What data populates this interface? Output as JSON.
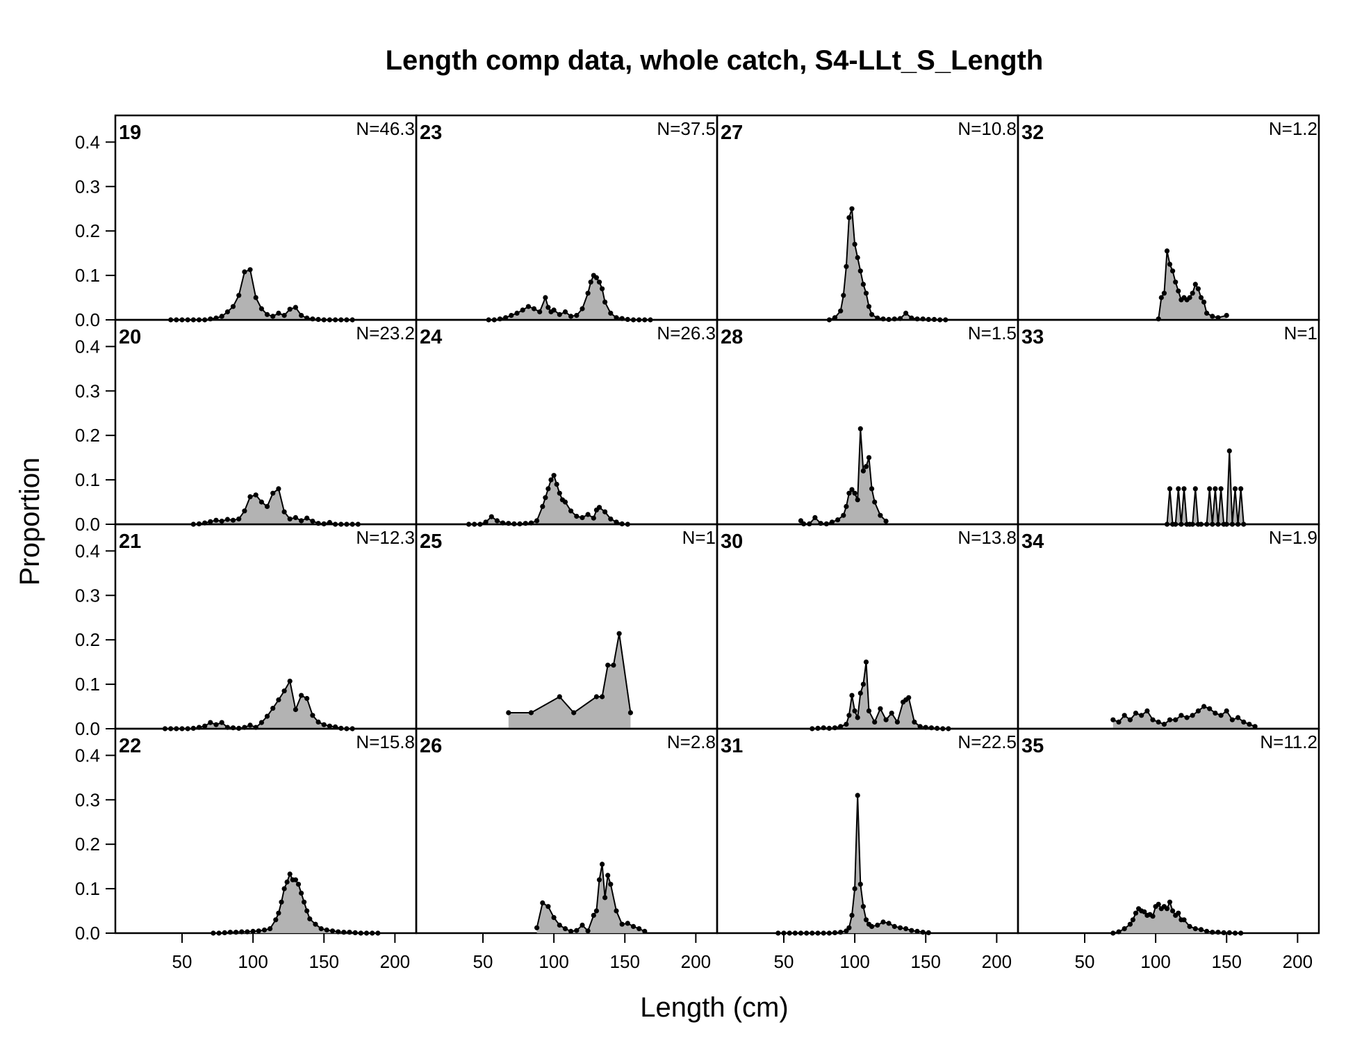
{
  "chart_data": {
    "type": "area",
    "title": "Length comp data, whole catch, S4-LLt_S_Length",
    "xlabel": "Length (cm)",
    "ylabel": "Proportion",
    "xlim": [
      3,
      215
    ],
    "ylim": [
      0,
      0.46
    ],
    "x_ticks": [
      "50",
      "100",
      "150",
      "200"
    ],
    "y_ticks": [
      "0.0",
      "0.1",
      "0.2",
      "0.3",
      "0.4"
    ],
    "layout": "4 columns x 4 rows, column-major order",
    "panels": [
      {
        "year": "19",
        "n": "N=46.3",
        "x": [
          42,
          46,
          50,
          54,
          58,
          62,
          66,
          70,
          74,
          78,
          82,
          86,
          90,
          94,
          98,
          102,
          106,
          110,
          114,
          118,
          122,
          126,
          130,
          134,
          138,
          142,
          146,
          150,
          154,
          158,
          162,
          166,
          170
        ],
        "y": [
          0,
          0,
          0,
          0,
          0,
          0,
          0,
          0.002,
          0.004,
          0.008,
          0.018,
          0.03,
          0.055,
          0.108,
          0.113,
          0.05,
          0.025,
          0.012,
          0.008,
          0.015,
          0.01,
          0.024,
          0.028,
          0.01,
          0.004,
          0.002,
          0.001,
          0,
          0,
          0,
          0,
          0,
          0
        ]
      },
      {
        "year": "20",
        "n": "N=23.2",
        "x": [
          58,
          62,
          66,
          70,
          74,
          78,
          82,
          86,
          90,
          94,
          98,
          102,
          106,
          110,
          114,
          118,
          122,
          126,
          130,
          134,
          138,
          142,
          146,
          150,
          154,
          158,
          162,
          166,
          170,
          174
        ],
        "y": [
          0,
          0.001,
          0.003,
          0.006,
          0.009,
          0.007,
          0.011,
          0.009,
          0.012,
          0.03,
          0.062,
          0.066,
          0.05,
          0.04,
          0.07,
          0.08,
          0.028,
          0.012,
          0.015,
          0.008,
          0.014,
          0.007,
          0.002,
          0.001,
          0.004,
          0,
          0,
          0,
          0,
          0
        ]
      },
      {
        "year": "21",
        "n": "N=12.3",
        "x": [
          38,
          42,
          46,
          50,
          54,
          58,
          62,
          66,
          70,
          74,
          78,
          82,
          86,
          90,
          94,
          98,
          102,
          106,
          110,
          114,
          118,
          122,
          126,
          130,
          134,
          138,
          142,
          146,
          150,
          154,
          158,
          162,
          166,
          170
        ],
        "y": [
          0,
          0,
          0,
          0,
          0,
          0.001,
          0.003,
          0.006,
          0.014,
          0.009,
          0.014,
          0.003,
          0.002,
          0.001,
          0.003,
          0.008,
          0.003,
          0.014,
          0.028,
          0.046,
          0.065,
          0.085,
          0.107,
          0.043,
          0.075,
          0.068,
          0.03,
          0.015,
          0.009,
          0.006,
          0.004,
          0.001,
          0,
          0
        ]
      },
      {
        "year": "22",
        "n": "N=15.8",
        "x": [
          72,
          76,
          80,
          84,
          88,
          92,
          96,
          100,
          104,
          108,
          112,
          116,
          118,
          120,
          122,
          124,
          126,
          128,
          130,
          132,
          134,
          136,
          138,
          140,
          144,
          148,
          152,
          156,
          160,
          164,
          168,
          172,
          176,
          180,
          184,
          188
        ],
        "y": [
          0,
          0,
          0.001,
          0.002,
          0.002,
          0.003,
          0.003,
          0.004,
          0.005,
          0.007,
          0.01,
          0.03,
          0.045,
          0.07,
          0.1,
          0.115,
          0.133,
          0.12,
          0.12,
          0.11,
          0.09,
          0.07,
          0.05,
          0.032,
          0.02,
          0.01,
          0.007,
          0.005,
          0.003,
          0.002,
          0.002,
          0.001,
          0,
          0,
          0,
          0
        ]
      },
      {
        "year": "23",
        "n": "N=37.5",
        "x": [
          54,
          58,
          62,
          66,
          70,
          74,
          78,
          82,
          86,
          90,
          94,
          96,
          98,
          100,
          104,
          108,
          112,
          116,
          120,
          124,
          126,
          128,
          130,
          132,
          134,
          136,
          140,
          144,
          148,
          152,
          156,
          160,
          164,
          168
        ],
        "y": [
          0,
          0,
          0.002,
          0.005,
          0.01,
          0.015,
          0.022,
          0.03,
          0.025,
          0.018,
          0.05,
          0.028,
          0.018,
          0.022,
          0.012,
          0.018,
          0.008,
          0.01,
          0.025,
          0.06,
          0.085,
          0.1,
          0.095,
          0.085,
          0.07,
          0.04,
          0.015,
          0.005,
          0.003,
          0.001,
          0,
          0,
          0,
          0
        ]
      },
      {
        "year": "24",
        "n": "N=26.3",
        "x": [
          40,
          44,
          48,
          52,
          56,
          60,
          64,
          68,
          72,
          76,
          80,
          84,
          88,
          92,
          94,
          96,
          98,
          100,
          102,
          104,
          106,
          108,
          112,
          116,
          120,
          124,
          128,
          130,
          132,
          136,
          140,
          144,
          148,
          152
        ],
        "y": [
          0,
          0,
          0,
          0.005,
          0.017,
          0.008,
          0.003,
          0.002,
          0.001,
          0.001,
          0.002,
          0.003,
          0.008,
          0.04,
          0.06,
          0.08,
          0.1,
          0.11,
          0.09,
          0.07,
          0.055,
          0.05,
          0.03,
          0.018,
          0.015,
          0.022,
          0.014,
          0.032,
          0.038,
          0.028,
          0.012,
          0.005,
          0.001,
          0
        ]
      },
      {
        "year": "25",
        "n": "N=1",
        "x": [
          68,
          84,
          104,
          114,
          130,
          134,
          138,
          142,
          146,
          154
        ],
        "y": [
          0.036,
          0.036,
          0.072,
          0.036,
          0.072,
          0.072,
          0.143,
          0.143,
          0.214,
          0.036
        ]
      },
      {
        "year": "26",
        "n": "N=2.8",
        "x": [
          88,
          92,
          96,
          100,
          104,
          108,
          112,
          116,
          120,
          124,
          128,
          130,
          132,
          134,
          136,
          138,
          140,
          144,
          148,
          152,
          156,
          160,
          164
        ],
        "y": [
          0.012,
          0.068,
          0.06,
          0.035,
          0.018,
          0.01,
          0.004,
          0.006,
          0.018,
          0.005,
          0.04,
          0.05,
          0.12,
          0.155,
          0.08,
          0.13,
          0.11,
          0.05,
          0.02,
          0.022,
          0.015,
          0.01,
          0.004
        ]
      },
      {
        "year": "27",
        "n": "N=10.8",
        "x": [
          82,
          86,
          90,
          92,
          94,
          96,
          98,
          100,
          102,
          104,
          106,
          108,
          110,
          112,
          116,
          120,
          124,
          128,
          132,
          136,
          140,
          144,
          148,
          152,
          156,
          160,
          164
        ],
        "y": [
          0,
          0.005,
          0.02,
          0.055,
          0.12,
          0.23,
          0.25,
          0.17,
          0.14,
          0.11,
          0.08,
          0.06,
          0.03,
          0.012,
          0.004,
          0.002,
          0.001,
          0.002,
          0.003,
          0.015,
          0.004,
          0.002,
          0.002,
          0.001,
          0.001,
          0,
          0
        ]
      },
      {
        "year": "28",
        "n": "N=1.5",
        "x": [
          62,
          64,
          68,
          72,
          76,
          80,
          84,
          88,
          92,
          94,
          96,
          98,
          100,
          102,
          104,
          106,
          108,
          110,
          112,
          114,
          118,
          122
        ],
        "y": [
          0.008,
          0.001,
          0.001,
          0.015,
          0.002,
          0.001,
          0.005,
          0.01,
          0.02,
          0.04,
          0.07,
          0.078,
          0.07,
          0.055,
          0.215,
          0.12,
          0.13,
          0.15,
          0.08,
          0.05,
          0.02,
          0.007
        ]
      },
      {
        "year": "30",
        "n": "N=13.8",
        "x": [
          70,
          74,
          78,
          82,
          86,
          90,
          94,
          96,
          98,
          100,
          102,
          104,
          106,
          108,
          110,
          114,
          118,
          122,
          126,
          130,
          134,
          136,
          138,
          142,
          146,
          150,
          154,
          158,
          162,
          166
        ],
        "y": [
          0,
          0.001,
          0.002,
          0.001,
          0.002,
          0.005,
          0.01,
          0.03,
          0.075,
          0.04,
          0.025,
          0.08,
          0.1,
          0.15,
          0.04,
          0.015,
          0.045,
          0.02,
          0.035,
          0.015,
          0.06,
          0.065,
          0.07,
          0.015,
          0.005,
          0.003,
          0.002,
          0.001,
          0,
          0
        ]
      },
      {
        "year": "31",
        "n": "N=22.5",
        "x": [
          46,
          50,
          54,
          58,
          62,
          66,
          70,
          74,
          78,
          82,
          86,
          90,
          94,
          96,
          98,
          100,
          102,
          104,
          106,
          108,
          110,
          112,
          116,
          120,
          124,
          128,
          132,
          136,
          140,
          144,
          148,
          152
        ],
        "y": [
          0,
          0,
          0,
          0,
          0,
          0,
          0,
          0,
          0,
          0,
          0.001,
          0.002,
          0.005,
          0.012,
          0.04,
          0.1,
          0.31,
          0.11,
          0.06,
          0.03,
          0.02,
          0.015,
          0.018,
          0.025,
          0.022,
          0.015,
          0.012,
          0.01,
          0.006,
          0.004,
          0.002,
          0.001
        ]
      },
      {
        "year": "32",
        "n": "N=1.2",
        "x": [
          102,
          104,
          106,
          108,
          110,
          112,
          114,
          116,
          118,
          120,
          122,
          124,
          126,
          128,
          130,
          132,
          134,
          136,
          140,
          144,
          150
        ],
        "y": [
          0.002,
          0.05,
          0.06,
          0.155,
          0.125,
          0.11,
          0.085,
          0.065,
          0.045,
          0.05,
          0.045,
          0.05,
          0.06,
          0.08,
          0.07,
          0.05,
          0.04,
          0.015,
          0.008,
          0.005,
          0.01
        ]
      },
      {
        "year": "33",
        "n": "N=1",
        "x": [
          108,
          110,
          112,
          114,
          116,
          118,
          120,
          122,
          124,
          126,
          128,
          130,
          132,
          136,
          138,
          140,
          142,
          144,
          146,
          148,
          150,
          152,
          154,
          156,
          158,
          160,
          162
        ],
        "y": [
          0,
          0.08,
          0,
          0,
          0.08,
          0,
          0.08,
          0,
          0,
          0,
          0.08,
          0,
          0,
          0,
          0.08,
          0,
          0.08,
          0,
          0.08,
          0,
          0,
          0.165,
          0,
          0.08,
          0,
          0.08,
          0
        ]
      },
      {
        "year": "34",
        "n": "N=1.9",
        "x": [
          70,
          74,
          78,
          82,
          86,
          90,
          94,
          98,
          102,
          106,
          110,
          114,
          118,
          122,
          126,
          130,
          134,
          138,
          142,
          146,
          150,
          154,
          158,
          162,
          166,
          170
        ],
        "y": [
          0.02,
          0.015,
          0.03,
          0.02,
          0.035,
          0.03,
          0.04,
          0.02,
          0.015,
          0.01,
          0.02,
          0.02,
          0.03,
          0.025,
          0.03,
          0.04,
          0.05,
          0.045,
          0.035,
          0.03,
          0.04,
          0.02,
          0.025,
          0.015,
          0.01,
          0.005
        ]
      },
      {
        "year": "35",
        "n": "N=11.2",
        "x": [
          70,
          74,
          78,
          82,
          84,
          86,
          88,
          90,
          92,
          94,
          96,
          98,
          100,
          102,
          104,
          106,
          108,
          110,
          112,
          114,
          116,
          118,
          120,
          124,
          128,
          132,
          136,
          140,
          144,
          148,
          152,
          156,
          160
        ],
        "y": [
          0,
          0.003,
          0.01,
          0.02,
          0.03,
          0.045,
          0.055,
          0.05,
          0.048,
          0.04,
          0.042,
          0.038,
          0.06,
          0.065,
          0.055,
          0.06,
          0.055,
          0.07,
          0.05,
          0.04,
          0.045,
          0.03,
          0.03,
          0.015,
          0.01,
          0.008,
          0.004,
          0.002,
          0.002,
          0.001,
          0.001,
          0,
          0
        ]
      }
    ]
  }
}
